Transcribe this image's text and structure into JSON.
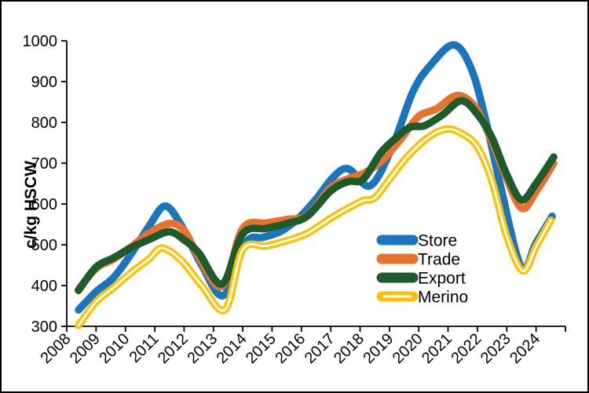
{
  "chart_data": {
    "type": "line",
    "title": "",
    "ylabel": "c/kg HSCW",
    "ylim": [
      300,
      1000
    ],
    "ytick_step": 100,
    "yticks": [
      1000,
      900,
      800,
      700,
      600,
      500,
      400,
      300
    ],
    "xtick_labels": [
      "2008",
      "2009",
      "2010",
      "2011",
      "2012",
      "2013",
      "2014",
      "2015",
      "2016",
      "2017",
      "2018",
      "2019",
      "2020",
      "2021",
      "2022",
      "2023",
      "2024"
    ],
    "grid": false,
    "legend_position": "inside-right",
    "background": "#ffffff",
    "axis_color": "#000000",
    "series": [
      {
        "name": "Store",
        "color": "#1B75BC",
        "style": "solid",
        "points": [
          [
            2008.4,
            340
          ],
          [
            2009,
            385
          ],
          [
            2009.6,
            420
          ],
          [
            2010.2,
            478
          ],
          [
            2010.8,
            545
          ],
          [
            2011.35,
            595
          ],
          [
            2011.9,
            548
          ],
          [
            2012.6,
            450
          ],
          [
            2013.35,
            376
          ],
          [
            2014.1,
            505
          ],
          [
            2014.7,
            518
          ],
          [
            2015.3,
            533
          ],
          [
            2015.9,
            565
          ],
          [
            2016.5,
            612
          ],
          [
            2017.1,
            667
          ],
          [
            2017.6,
            686
          ],
          [
            2018.35,
            645
          ],
          [
            2019.1,
            740
          ],
          [
            2019.8,
            875
          ],
          [
            2020.4,
            940
          ],
          [
            2021.2,
            990
          ],
          [
            2021.8,
            930
          ],
          [
            2022.3,
            800
          ],
          [
            2022.8,
            640
          ],
          [
            2023.5,
            445
          ],
          [
            2024.0,
            505
          ],
          [
            2024.55,
            570
          ]
        ]
      },
      {
        "name": "Trade",
        "color": "#E8712E",
        "style": "solid",
        "points": [
          [
            2008.4,
            390
          ],
          [
            2009,
            442
          ],
          [
            2009.6,
            465
          ],
          [
            2010.2,
            495
          ],
          [
            2010.8,
            528
          ],
          [
            2011.5,
            552
          ],
          [
            2012.0,
            535
          ],
          [
            2012.5,
            470
          ],
          [
            2013.3,
            398
          ],
          [
            2014.0,
            540
          ],
          [
            2014.8,
            553
          ],
          [
            2015.5,
            562
          ],
          [
            2016.2,
            572
          ],
          [
            2017.0,
            640
          ],
          [
            2017.6,
            662
          ],
          [
            2018.2,
            678
          ],
          [
            2018.8,
            710
          ],
          [
            2019.4,
            760
          ],
          [
            2020.0,
            815
          ],
          [
            2020.6,
            833
          ],
          [
            2021.3,
            866
          ],
          [
            2021.9,
            840
          ],
          [
            2022.4,
            770
          ],
          [
            2022.9,
            680
          ],
          [
            2023.5,
            590
          ],
          [
            2024.0,
            630
          ],
          [
            2024.6,
            700
          ]
        ]
      },
      {
        "name": "Export",
        "color": "#1E5B2B",
        "style": "solid",
        "points": [
          [
            2008.4,
            388
          ],
          [
            2009,
            445
          ],
          [
            2009.6,
            468
          ],
          [
            2010.2,
            493
          ],
          [
            2010.9,
            516
          ],
          [
            2011.5,
            532
          ],
          [
            2012.0,
            512
          ],
          [
            2012.5,
            480
          ],
          [
            2013.3,
            404
          ],
          [
            2014.0,
            527
          ],
          [
            2014.8,
            540
          ],
          [
            2015.5,
            552
          ],
          [
            2016.2,
            570
          ],
          [
            2017.0,
            632
          ],
          [
            2017.6,
            655
          ],
          [
            2018.1,
            660
          ],
          [
            2018.7,
            725
          ],
          [
            2019.2,
            760
          ],
          [
            2019.7,
            788
          ],
          [
            2020.2,
            792
          ],
          [
            2020.8,
            818
          ],
          [
            2021.45,
            853
          ],
          [
            2022.0,
            820
          ],
          [
            2022.5,
            762
          ],
          [
            2023.0,
            672
          ],
          [
            2023.5,
            610
          ],
          [
            2024.0,
            650
          ],
          [
            2024.6,
            715
          ]
        ]
      },
      {
        "name": "Merino",
        "color": "#FFC000",
        "style": "double-white-core",
        "points": [
          [
            2008.4,
            302
          ],
          [
            2009,
            360
          ],
          [
            2009.6,
            395
          ],
          [
            2010.2,
            432
          ],
          [
            2010.8,
            465
          ],
          [
            2011.25,
            492
          ],
          [
            2011.9,
            462
          ],
          [
            2012.6,
            400
          ],
          [
            2013.4,
            341
          ],
          [
            2014.0,
            488
          ],
          [
            2014.8,
            497
          ],
          [
            2015.5,
            510
          ],
          [
            2016.2,
            528
          ],
          [
            2017.0,
            565
          ],
          [
            2017.6,
            590
          ],
          [
            2018.1,
            608
          ],
          [
            2018.5,
            615
          ],
          [
            2019.0,
            660
          ],
          [
            2019.6,
            715
          ],
          [
            2020.3,
            762
          ],
          [
            2020.9,
            783
          ],
          [
            2021.4,
            775
          ],
          [
            2022.0,
            740
          ],
          [
            2022.5,
            655
          ],
          [
            2023.0,
            520
          ],
          [
            2023.55,
            436
          ],
          [
            2024.0,
            495
          ],
          [
            2024.5,
            560
          ]
        ]
      }
    ]
  }
}
